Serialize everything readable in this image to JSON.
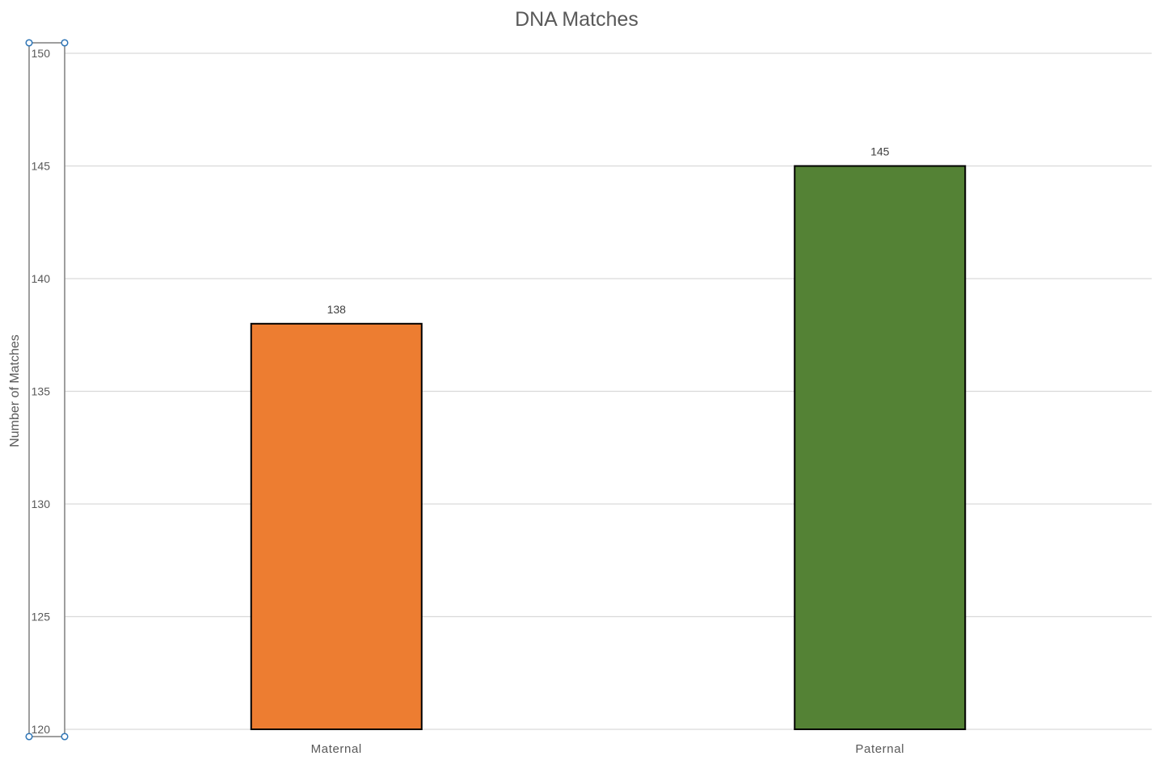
{
  "chart_data": {
    "type": "bar",
    "title": "DNA Matches",
    "xlabel": "",
    "ylabel": "Number of Matches",
    "categories": [
      "Maternal",
      "Paternal"
    ],
    "values": [
      138,
      145
    ],
    "data_labels": [
      "138",
      "145"
    ],
    "ylim": [
      120,
      150
    ],
    "yticks": [
      120,
      125,
      130,
      135,
      140,
      145,
      150
    ],
    "ytick_labels": [
      "120",
      "125",
      "130",
      "135",
      "140",
      "145",
      "150"
    ],
    "grid": true,
    "legend": "none",
    "colors": {
      "Maternal": "#ED7D31",
      "Paternal": "#548235",
      "bar_border": "#000000",
      "gridline": "#D9D9D9",
      "text": "#595959",
      "selection_handle": "#2E75B6"
    }
  }
}
